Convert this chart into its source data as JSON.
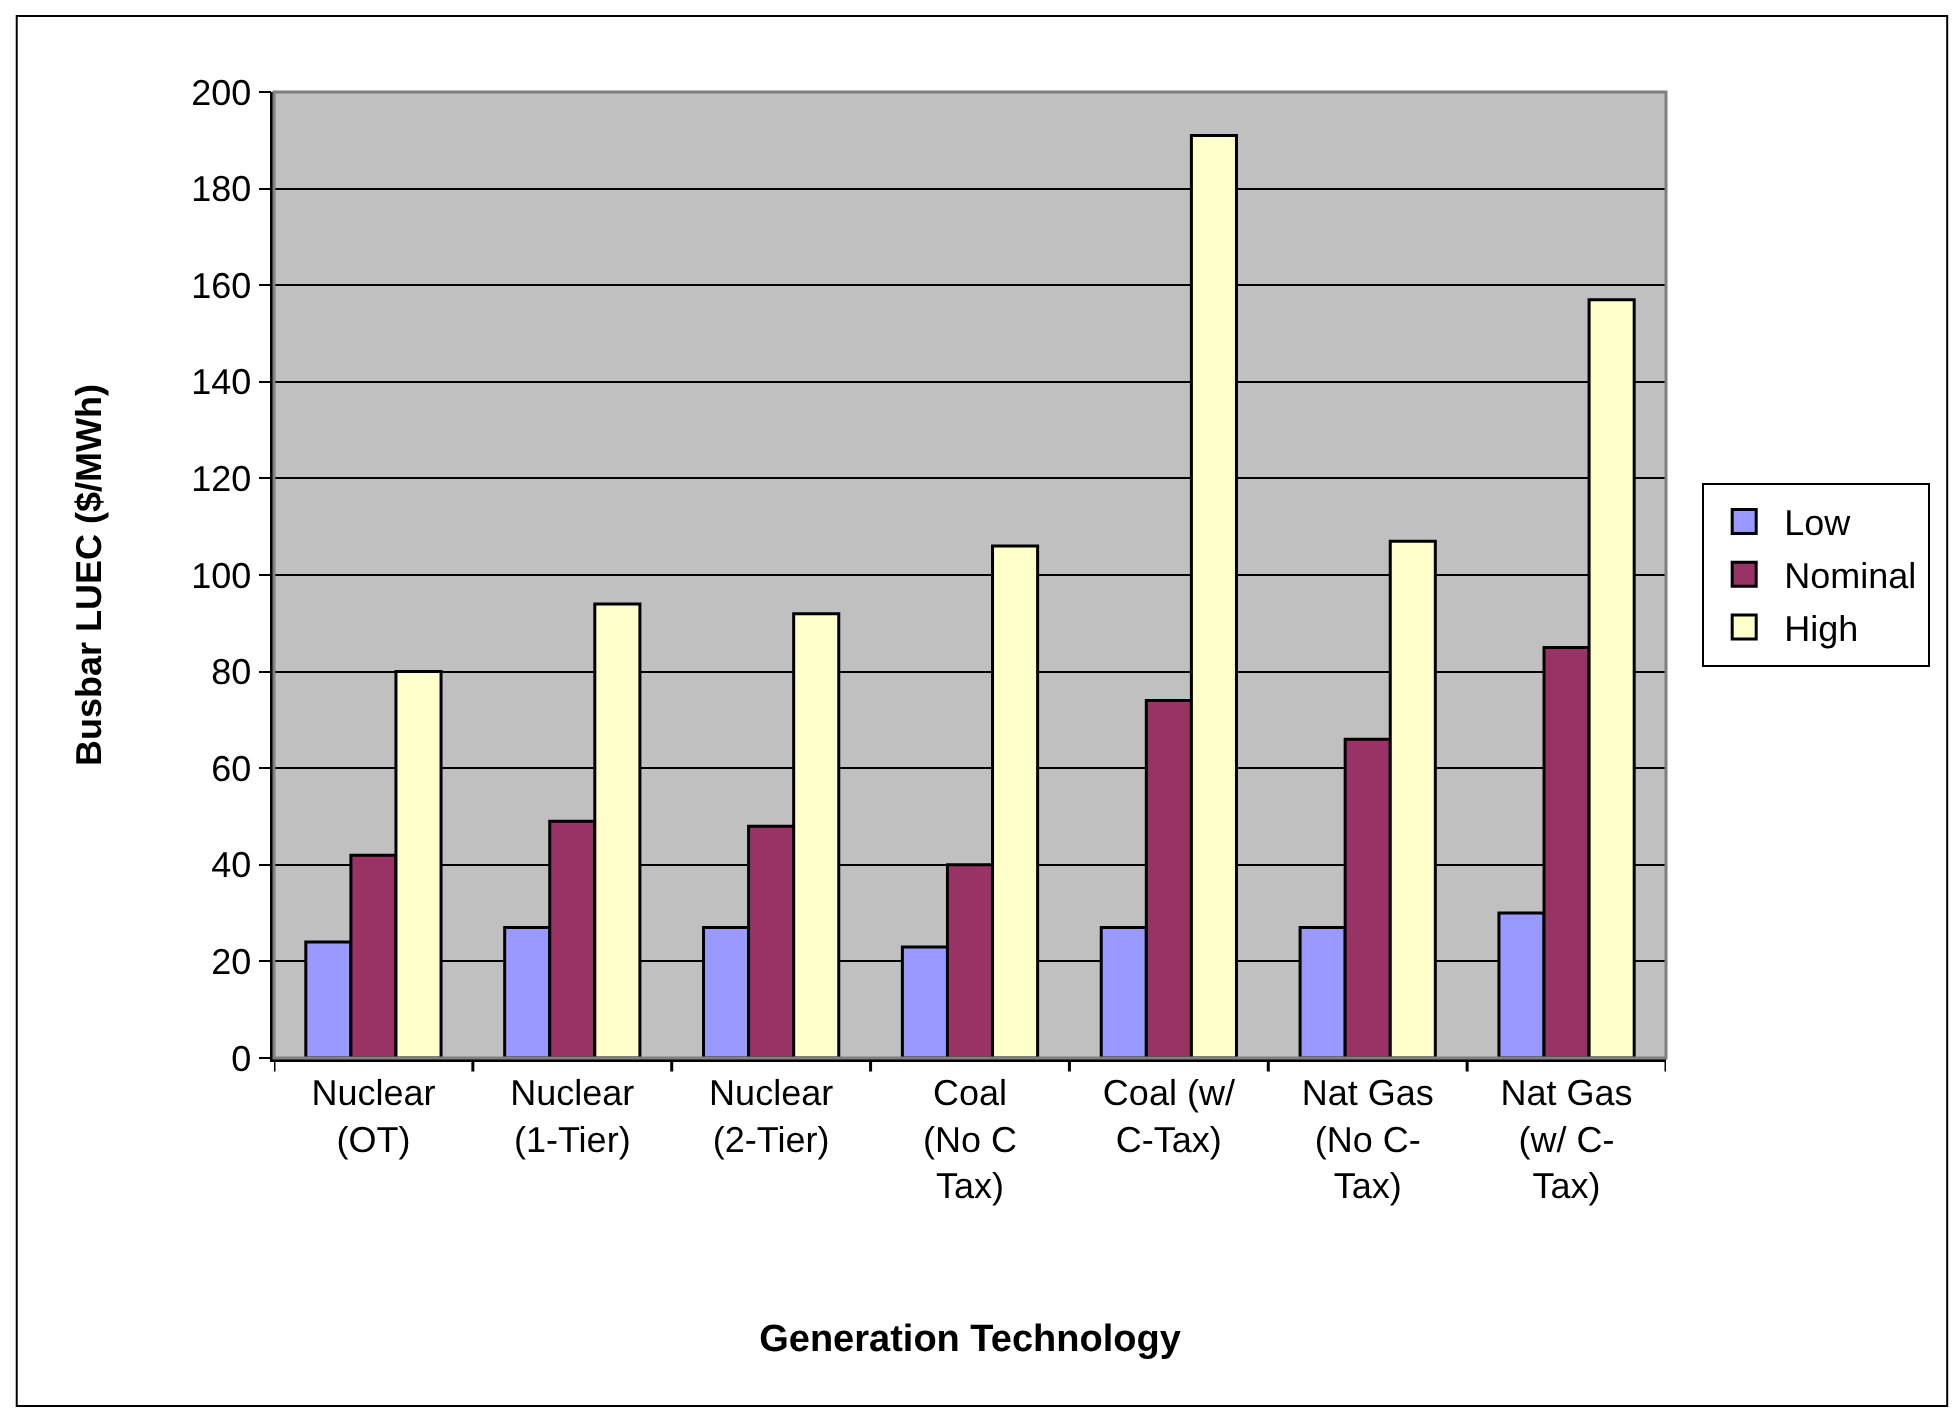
{
  "chart_data": {
    "type": "bar",
    "xlabel": "Generation Technology",
    "ylabel": "Busbar LUEC ($/MWh)",
    "categories": [
      "Nuclear\n(OT)",
      "Nuclear\n(1-Tier)",
      "Nuclear\n(2-Tier)",
      "Coal\n(No C\nTax)",
      "Coal (w/\nC-Tax)",
      "Nat Gas\n(No C-\nTax)",
      "Nat Gas\n(w/ C-\nTax)"
    ],
    "series": [
      {
        "name": "Low",
        "color": "#9999ff",
        "values": [
          24,
          27,
          27,
          23,
          27,
          27,
          30
        ]
      },
      {
        "name": "Nominal",
        "color": "#993366",
        "values": [
          42,
          49,
          48,
          40,
          74,
          66,
          85
        ]
      },
      {
        "name": "High",
        "color": "#ffffcc",
        "values": [
          80,
          94,
          92,
          106,
          191,
          107,
          157
        ]
      }
    ],
    "ylim": [
      0,
      200
    ],
    "yticks": [
      0,
      20,
      40,
      60,
      80,
      100,
      120,
      140,
      160,
      180,
      200
    ],
    "grid": "y",
    "legend": "right"
  }
}
